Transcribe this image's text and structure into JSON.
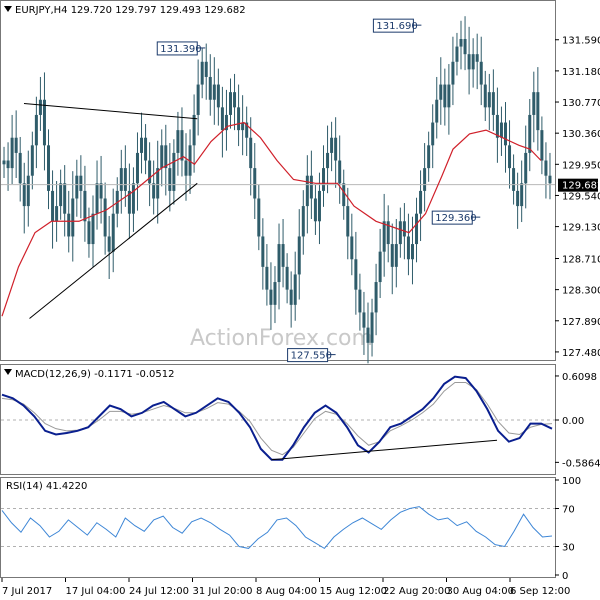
{
  "chart_data": [
    {
      "type": "candlestick",
      "title": "EURJPY,H4  129.720 129.797 129.493 129.682",
      "symbol": "EURJPY",
      "timeframe": "H4",
      "ohlc_last": [
        129.72,
        129.797,
        129.493,
        129.682
      ],
      "ylim": [
        127.4,
        131.85
      ],
      "y_ticks": [
        "131.590",
        "131.180",
        "130.770",
        "130.360",
        "129.950",
        "129.540",
        "129.130",
        "128.710",
        "128.300",
        "127.890",
        "127.480"
      ],
      "current_price_label": "129.682",
      "current_price": 129.682,
      "annotations": [
        {
          "label": "131.390",
          "value": 131.39,
          "x": 0.355
        },
        {
          "label": "131.690",
          "value": 131.69,
          "x": 0.748
        },
        {
          "label": "127.550",
          "value": 127.55,
          "x": 0.592
        },
        {
          "label": "129.360",
          "value": 129.36,
          "x": 0.855
        }
      ],
      "closes": [
        130.0,
        129.9,
        130.3,
        130.1,
        129.7,
        129.4,
        129.8,
        130.2,
        130.6,
        130.8,
        130.2,
        129.6,
        129.2,
        129.4,
        129.7,
        129.3,
        129.0,
        129.5,
        129.8,
        129.6,
        129.2,
        128.9,
        129.3,
        129.7,
        129.5,
        129.0,
        128.8,
        129.3,
        129.6,
        129.9,
        129.6,
        129.3,
        129.7,
        130.1,
        130.3,
        130.0,
        129.7,
        129.5,
        129.9,
        130.2,
        129.9,
        129.6,
        130.1,
        130.4,
        130.0,
        129.8,
        130.2,
        130.6,
        131.0,
        131.3,
        131.1,
        130.8,
        131.0,
        130.7,
        130.4,
        130.6,
        130.9,
        130.7,
        130.4,
        130.5,
        130.3,
        129.9,
        129.5,
        129.0,
        128.6,
        128.3,
        128.1,
        128.4,
        128.9,
        128.6,
        128.3,
        128.1,
        128.5,
        129.0,
        129.4,
        129.8,
        129.5,
        129.2,
        129.6,
        129.9,
        130.1,
        130.3,
        130.0,
        129.7,
        129.4,
        129.0,
        128.7,
        128.3,
        128.0,
        127.8,
        127.6,
        128.0,
        128.4,
        128.8,
        129.2,
        128.9,
        128.6,
        128.9,
        129.2,
        129.0,
        128.7,
        128.9,
        129.3,
        129.6,
        129.9,
        130.2,
        130.5,
        130.8,
        131.0,
        130.7,
        131.0,
        131.3,
        131.5,
        131.6,
        131.4,
        131.2,
        131.4,
        131.3,
        131.0,
        130.7,
        130.9,
        130.6,
        130.3,
        130.5,
        130.2,
        129.9,
        129.6,
        129.4,
        129.7,
        130.1,
        130.6,
        130.9,
        130.4,
        130.0,
        129.8,
        129.7
      ],
      "moving_average": [
        {
          "x": 0.0,
          "y": 127.95
        },
        {
          "x": 0.03,
          "y": 128.6
        },
        {
          "x": 0.06,
          "y": 129.05
        },
        {
          "x": 0.09,
          "y": 129.2
        },
        {
          "x": 0.14,
          "y": 129.2
        },
        {
          "x": 0.19,
          "y": 129.35
        },
        {
          "x": 0.24,
          "y": 129.6
        },
        {
          "x": 0.29,
          "y": 129.9
        },
        {
          "x": 0.33,
          "y": 130.05
        },
        {
          "x": 0.35,
          "y": 129.95
        },
        {
          "x": 0.38,
          "y": 130.25
        },
        {
          "x": 0.41,
          "y": 130.45
        },
        {
          "x": 0.44,
          "y": 130.5
        },
        {
          "x": 0.47,
          "y": 130.3
        },
        {
          "x": 0.5,
          "y": 130.0
        },
        {
          "x": 0.53,
          "y": 129.75
        },
        {
          "x": 0.57,
          "y": 129.7
        },
        {
          "x": 0.61,
          "y": 129.7
        },
        {
          "x": 0.64,
          "y": 129.4
        },
        {
          "x": 0.68,
          "y": 129.2
        },
        {
          "x": 0.72,
          "y": 129.1
        },
        {
          "x": 0.74,
          "y": 129.05
        },
        {
          "x": 0.77,
          "y": 129.3
        },
        {
          "x": 0.8,
          "y": 129.8
        },
        {
          "x": 0.82,
          "y": 130.15
        },
        {
          "x": 0.85,
          "y": 130.35
        },
        {
          "x": 0.88,
          "y": 130.4
        },
        {
          "x": 0.91,
          "y": 130.3
        },
        {
          "x": 0.94,
          "y": 130.2
        },
        {
          "x": 0.96,
          "y": 130.15
        },
        {
          "x": 0.98,
          "y": 130.0
        }
      ],
      "trendlines": [
        {
          "from": {
            "x": 0.04,
            "y": 130.75
          },
          "to": {
            "x": 0.355,
            "y": 130.55
          }
        },
        {
          "from": {
            "x": 0.05,
            "y": 127.92
          },
          "to": {
            "x": 0.355,
            "y": 129.7
          }
        }
      ],
      "watermark": "ActionForex.com"
    },
    {
      "type": "line",
      "label": "MACD(12,26,9) -0.1171 -0.0512",
      "ylim": [
        -0.72,
        0.72
      ],
      "y_ticks": [
        "0.6098",
        "0.00",
        "-0.5864"
      ],
      "series": [
        {
          "name": "MACD",
          "color": "#0a1f8f",
          "values": [
            0.35,
            0.3,
            0.2,
            0.05,
            -0.15,
            -0.2,
            -0.18,
            -0.15,
            -0.1,
            0.05,
            0.2,
            0.15,
            0.05,
            0.1,
            0.2,
            0.25,
            0.15,
            0.05,
            0.1,
            0.2,
            0.3,
            0.25,
            0.1,
            -0.1,
            -0.4,
            -0.55,
            -0.55,
            -0.35,
            -0.1,
            0.1,
            0.2,
            0.1,
            -0.1,
            -0.35,
            -0.45,
            -0.3,
            -0.1,
            -0.05,
            0.05,
            0.15,
            0.3,
            0.5,
            0.6,
            0.58,
            0.4,
            0.15,
            -0.15,
            -0.3,
            -0.25,
            -0.05,
            -0.05,
            -0.12
          ]
        },
        {
          "name": "Signal",
          "color": "#9a9a9a",
          "values": [
            0.3,
            0.28,
            0.22,
            0.1,
            -0.05,
            -0.12,
            -0.15,
            -0.14,
            -0.1,
            0.0,
            0.12,
            0.12,
            0.08,
            0.1,
            0.15,
            0.2,
            0.16,
            0.1,
            0.1,
            0.16,
            0.24,
            0.22,
            0.12,
            -0.02,
            -0.25,
            -0.42,
            -0.48,
            -0.38,
            -0.18,
            0.02,
            0.12,
            0.08,
            -0.05,
            -0.22,
            -0.35,
            -0.3,
            -0.15,
            -0.08,
            0.0,
            0.1,
            0.22,
            0.4,
            0.52,
            0.52,
            0.42,
            0.22,
            -0.02,
            -0.18,
            -0.2,
            -0.1,
            -0.06,
            -0.05
          ]
        }
      ],
      "trendline": {
        "from": {
          "x": 0.49,
          "y": -0.55
        },
        "to": {
          "x": 0.9,
          "y": -0.28
        }
      }
    },
    {
      "type": "line",
      "label": "RSI(14) 41.4220",
      "ylim": [
        0,
        100
      ],
      "y_ticks": [
        "100",
        "70",
        "30",
        "0"
      ],
      "levels": [
        70,
        30
      ],
      "series": [
        {
          "name": "RSI",
          "color": "#3d86d6",
          "values": [
            68,
            55,
            45,
            60,
            52,
            40,
            46,
            58,
            50,
            42,
            55,
            48,
            40,
            60,
            52,
            46,
            58,
            62,
            50,
            44,
            56,
            60,
            55,
            48,
            42,
            30,
            28,
            38,
            45,
            58,
            60,
            52,
            40,
            34,
            28,
            40,
            48,
            55,
            60,
            54,
            48,
            58,
            66,
            70,
            72,
            64,
            58,
            60,
            52,
            56,
            46,
            40,
            32,
            30,
            46,
            64,
            50,
            40,
            41
          ]
        }
      ]
    }
  ],
  "x_axis": {
    "labels": [
      "7 Jul 2017",
      "17 Jul 04:00",
      "24 Jul 12:00",
      "31 Jul 20:00",
      "8 Aug 04:00",
      "15 Aug 12:00",
      "22 Aug 20:00",
      "30 Aug 04:00",
      "6 Sep 12:00"
    ]
  },
  "colors": {
    "candles": "#2f5c6a",
    "moving_average": "#d0202a",
    "trendline": "#000000",
    "annotation": "#1b3a6b",
    "grid": "#c8c8c8",
    "border": "#777777"
  }
}
